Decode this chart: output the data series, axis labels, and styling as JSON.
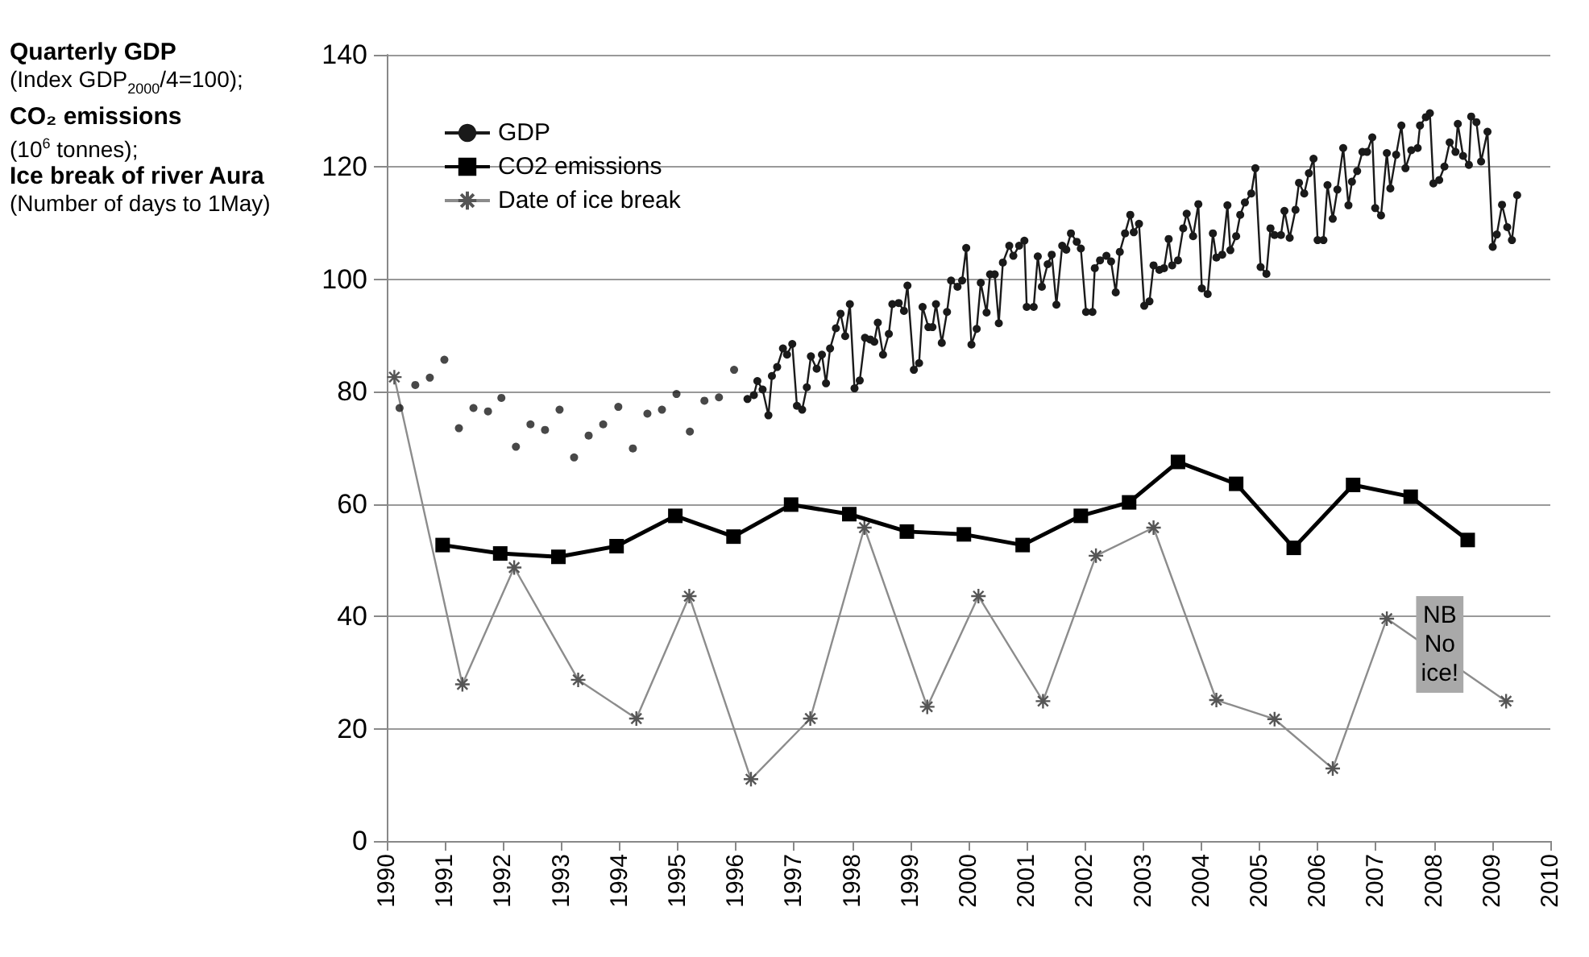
{
  "chart_data": {
    "type": "line",
    "ylabel": "Quarterly GDP\n(Index GDP$_{2000}$/4=100);\nCO₂ emissions\n(10$^{6}$ tonnes);\nIce break of river Aura\n(Number of days to 1May)",
    "xlim": [
      1990,
      2010
    ],
    "xticks": [
      1990,
      1991,
      1992,
      1993,
      1994,
      1995,
      1996,
      1997,
      1998,
      1999,
      2000,
      2001,
      2002,
      2003,
      2004,
      2005,
      2006,
      2007,
      2008,
      2009,
      2010
    ],
    "ylim": [
      0,
      140
    ],
    "yticks": [
      0,
      20,
      40,
      60,
      80,
      100,
      120,
      140
    ],
    "grid": "y",
    "legend": "top left",
    "annotations": [
      {
        "text": "NB\nNo\nice!",
        "x": 2008.1,
        "y": 35
      }
    ],
    "series": [
      {
        "type": "scatter",
        "color": "#1a1a1a",
        "marker": "circle",
        "x": [
          1990.22,
          1990.49,
          1990.74,
          1990.99,
          1991.24,
          1991.49,
          1991.74,
          1991.97,
          1992.22,
          1992.47,
          1992.72,
          1992.97,
          1993.22,
          1993.47,
          1993.72,
          1993.98,
          1994.23,
          1994.48,
          1994.73,
          1994.98,
          1995.21,
          1995.46,
          1995.71,
          1995.97
        ],
        "values": [
          77.1,
          81.2,
          82.5,
          85.7,
          73.5,
          77.1,
          76.5,
          78.9,
          70.2,
          74.2,
          73.2,
          76.8,
          68.3,
          72.2,
          74.2,
          77.3,
          69.9,
          76.1,
          76.8,
          79.6,
          72.9,
          78.4,
          79.0,
          83.9
        ]
      },
      {
        "name": "GDP",
        "color": "#1a1a1a",
        "marker": "circle",
        "x": [
          1996.2,
          1996.31,
          1996.37,
          1996.46,
          1996.56,
          1996.62,
          1996.71,
          1996.81,
          1996.88,
          1996.97,
          1997.05,
          1997.14,
          1997.22,
          1997.29,
          1997.39,
          1997.48,
          1997.55,
          1997.62,
          1997.72,
          1997.8,
          1997.88,
          1997.96,
          1998.04,
          1998.13,
          1998.22,
          1998.31,
          1998.38,
          1998.44,
          1998.53,
          1998.63,
          1998.69,
          1998.8,
          1998.89,
          1998.95,
          1999.06,
          1999.15,
          1999.21,
          1999.31,
          1999.38,
          1999.44,
          1999.54,
          1999.63,
          1999.7,
          1999.81,
          1999.89,
          1999.96,
          2000.05,
          2000.14,
          2000.21,
          2000.31,
          2000.37,
          2000.45,
          2000.52,
          2000.59,
          2000.7,
          2000.77,
          2000.87,
          2000.96,
          2001.0,
          2001.12,
          2001.19,
          2001.26,
          2001.36,
          2001.43,
          2001.51,
          2001.61,
          2001.68,
          2001.76,
          2001.86,
          2001.93,
          2002.02,
          2002.13,
          2002.17,
          2002.26,
          2002.37,
          2002.45,
          2002.53,
          2002.6,
          2002.69,
          2002.78,
          2002.84,
          2002.93,
          2003.02,
          2003.11,
          2003.18,
          2003.28,
          2003.36,
          2003.44,
          2003.5,
          2003.6,
          2003.69,
          2003.75,
          2003.86,
          2003.95,
          2004.01,
          2004.11,
          2004.2,
          2004.26,
          2004.36,
          2004.45,
          2004.5,
          2004.6,
          2004.67,
          2004.75,
          2004.86,
          2004.93,
          2005.02,
          2005.12,
          2005.19,
          2005.26,
          2005.37,
          2005.43,
          2005.52,
          2005.62,
          2005.68,
          2005.77,
          2005.85,
          2005.93,
          2006.0,
          2006.1,
          2006.17,
          2006.26,
          2006.34,
          2006.44,
          2006.53,
          2006.59,
          2006.68,
          2006.77,
          2006.85,
          2006.94,
          2006.99,
          2007.09,
          2007.19,
          2007.25,
          2007.35,
          2007.44,
          2007.51,
          2007.61,
          2007.72,
          2007.76,
          2007.86,
          2007.93,
          2007.99,
          2008.09,
          2008.18,
          2008.27,
          2008.37,
          2008.41,
          2008.5,
          2008.6,
          2008.64,
          2008.73,
          2008.81,
          2008.92,
          2009.01,
          2009.08,
          2009.17,
          2009.26,
          2009.34,
          2009.43
        ],
        "values": [
          78.7,
          79.4,
          81.9,
          80.4,
          75.8,
          82.8,
          84.4,
          87.7,
          86.6,
          88.5,
          77.5,
          76.8,
          80.8,
          86.3,
          84.1,
          86.6,
          81.5,
          87.7,
          91.3,
          93.9,
          89.9,
          95.6,
          80.6,
          82.0,
          89.6,
          89.3,
          88.9,
          92.3,
          86.6,
          90.3,
          95.6,
          95.8,
          94.4,
          98.9,
          83.9,
          85.1,
          95.1,
          91.5,
          91.5,
          95.6,
          88.7,
          94.2,
          99.8,
          98.7,
          99.8,
          105.6,
          88.4,
          91.2,
          99.4,
          94.1,
          100.9,
          100.9,
          92.2,
          103.0,
          106.0,
          104.2,
          106.0,
          106.9,
          95.1,
          95.1,
          104.1,
          98.7,
          102.7,
          104.4,
          95.5,
          106.0,
          105.3,
          108.2,
          106.7,
          105.5,
          94.2,
          94.2,
          102.0,
          103.4,
          104.2,
          103.2,
          97.7,
          104.9,
          108.2,
          111.5,
          108.4,
          109.9,
          95.3,
          96.1,
          102.5,
          101.7,
          102.0,
          107.2,
          102.5,
          103.4,
          109.1,
          111.7,
          107.7,
          113.4,
          98.4,
          97.4,
          108.2,
          103.9,
          104.4,
          113.2,
          105.2,
          107.7,
          111.5,
          113.7,
          115.3,
          119.8,
          102.2,
          101.0,
          109.1,
          107.9,
          107.9,
          112.2,
          107.4,
          112.4,
          117.2,
          115.3,
          118.9,
          121.5,
          107.0,
          107.0,
          116.8,
          110.8,
          116.0,
          123.4,
          113.2,
          117.4,
          119.3,
          122.7,
          122.7,
          125.3,
          112.7,
          111.4,
          122.5,
          116.2,
          122.2,
          127.4,
          119.8,
          123.0,
          123.4,
          127.4,
          128.9,
          129.6,
          117.1,
          117.7,
          120.1,
          124.4,
          122.7,
          127.7,
          122.0,
          120.4,
          129.0,
          128.0,
          121.0,
          126.3,
          105.8,
          108.0,
          113.3,
          109.3,
          107.0,
          115.0
        ]
      },
      {
        "name": "CO2 emissions",
        "color": "#000000",
        "marker": "square",
        "x": [
          1990.96,
          1991.95,
          1992.95,
          1993.95,
          1994.96,
          1995.96,
          1996.95,
          1997.95,
          1998.94,
          1999.92,
          2000.93,
          2001.93,
          2002.76,
          2003.6,
          2004.6,
          2005.59,
          2006.61,
          2007.6,
          2008.58
        ],
        "values": [
          52.7,
          51.2,
          50.6,
          52.5,
          57.9,
          54.2,
          59.9,
          58.2,
          55.1,
          54.6,
          52.7,
          57.9,
          60.3,
          67.5,
          63.6,
          52.2,
          63.4,
          61.3,
          53.6
        ]
      },
      {
        "name": "Date of ice break",
        "color": "#8c8c8c",
        "marker": "cross",
        "x": [
          1990.13,
          1991.3,
          1992.19,
          1993.29,
          1994.29,
          1995.2,
          1996.26,
          1997.28,
          1998.21,
          1999.29,
          2000.17,
          2001.28,
          2002.19,
          2003.18,
          2004.26,
          2005.26,
          2006.26,
          2007.19,
          2009.24
        ],
        "values": [
          82.6,
          27.9,
          48.7,
          28.7,
          21.8,
          43.6,
          11,
          21.8,
          55.8,
          23.9,
          43.6,
          24.9,
          50.8,
          55.8,
          25.1,
          21.7,
          12.9,
          39.6,
          24.9
        ]
      }
    ]
  }
}
